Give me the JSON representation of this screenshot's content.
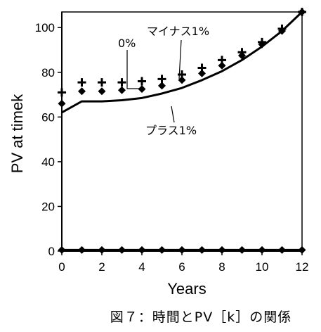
{
  "chart_data": {
    "type": "line",
    "xlabel": "Years",
    "ylabel": "PV at timek",
    "xlim": [
      0,
      12
    ],
    "ylim": [
      0,
      107
    ],
    "xticks": [
      "0",
      "2",
      "4",
      "6",
      "8",
      "10",
      "12"
    ],
    "yticks": [
      "0",
      "20",
      "40",
      "60",
      "80",
      "100"
    ],
    "grid": false,
    "caption": "図７：時間とPV［k］の関係",
    "annotations": [
      "マイナス1%",
      "0%",
      "プラス1%"
    ],
    "series": [
      {
        "name": "マイナス1%",
        "marker": "plus",
        "x": [
          0,
          1,
          2,
          3,
          4,
          5,
          6,
          7,
          8,
          9,
          10,
          11,
          12
        ],
        "y": [
          71,
          75.5,
          75.5,
          75.5,
          76,
          77,
          79,
          82,
          85.5,
          89,
          93.5,
          99.5,
          107
        ]
      },
      {
        "name": "0%",
        "marker": "diamond",
        "x": [
          0,
          1,
          2,
          3,
          4,
          5,
          6,
          7,
          8,
          9,
          10,
          11,
          12
        ],
        "y": [
          66,
          71.5,
          71.5,
          72,
          72.5,
          74,
          76.5,
          79.5,
          83,
          87.5,
          92.5,
          98.5,
          107
        ]
      },
      {
        "name": "プラス1%",
        "marker": "line",
        "x": [
          0,
          1,
          2,
          3,
          4,
          5,
          6,
          7,
          8,
          9,
          10,
          11,
          12
        ],
        "y": [
          62,
          67,
          67,
          67.5,
          68.5,
          70.5,
          73,
          76.5,
          80.5,
          85.5,
          91.5,
          98.5,
          107
        ]
      },
      {
        "name": "",
        "marker": "diamond-line",
        "x": [
          0,
          1,
          2,
          3,
          4,
          5,
          6,
          7,
          8,
          9,
          10,
          11,
          12
        ],
        "y": [
          0.5,
          0.5,
          0.5,
          0.5,
          0.5,
          0.5,
          0.5,
          0.5,
          0.5,
          0.5,
          0.5,
          0.5,
          0.5
        ]
      }
    ]
  }
}
